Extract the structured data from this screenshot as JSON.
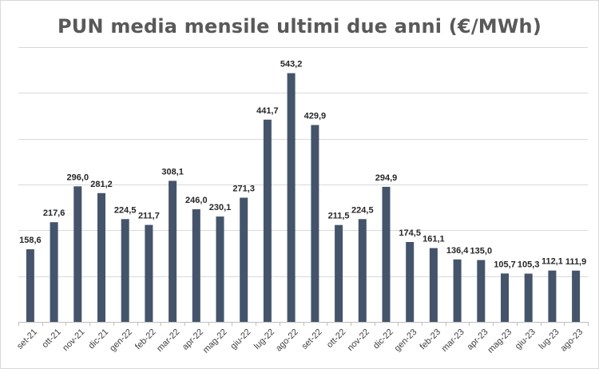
{
  "chart_data": {
    "type": "bar",
    "title": "PUN media mensile ultimi due anni (€/MWh)",
    "xlabel": "",
    "ylabel": "",
    "ylim": [
      0,
      600
    ],
    "grid": true,
    "legend": "none",
    "categories": [
      "set-21",
      "ott-21",
      "nov-21",
      "dic-21",
      "gen-22",
      "feb-22",
      "mar-22",
      "apr-22",
      "mag-22",
      "giu-22",
      "lug-22",
      "ago-22",
      "set-22",
      "ott-22",
      "nov-22",
      "dic-22",
      "gen-23",
      "feb-23",
      "mar-23",
      "apr-23",
      "mag-23",
      "giu-23",
      "lug-23",
      "ago-23"
    ],
    "values": [
      158.6,
      217.6,
      296.0,
      281.2,
      224.5,
      211.7,
      308.1,
      246.0,
      230.1,
      271.3,
      441.7,
      543.2,
      429.9,
      211.5,
      224.5,
      294.9,
      174.5,
      161.1,
      136.4,
      135.0,
      105.7,
      105.3,
      112.1,
      111.9
    ],
    "value_labels": [
      "158,6",
      "217,6",
      "296,0",
      "281,2",
      "224,5",
      "211,7",
      "308,1",
      "246,0",
      "230,1",
      "271,3",
      "441,7",
      "543,2",
      "429,9",
      "211,5",
      "224,5",
      "294,9",
      "174,5",
      "161,1",
      "136,4",
      "135,0",
      "105,7",
      "105,3",
      "112,1",
      "111,9"
    ],
    "bar_color": "#44546a"
  }
}
